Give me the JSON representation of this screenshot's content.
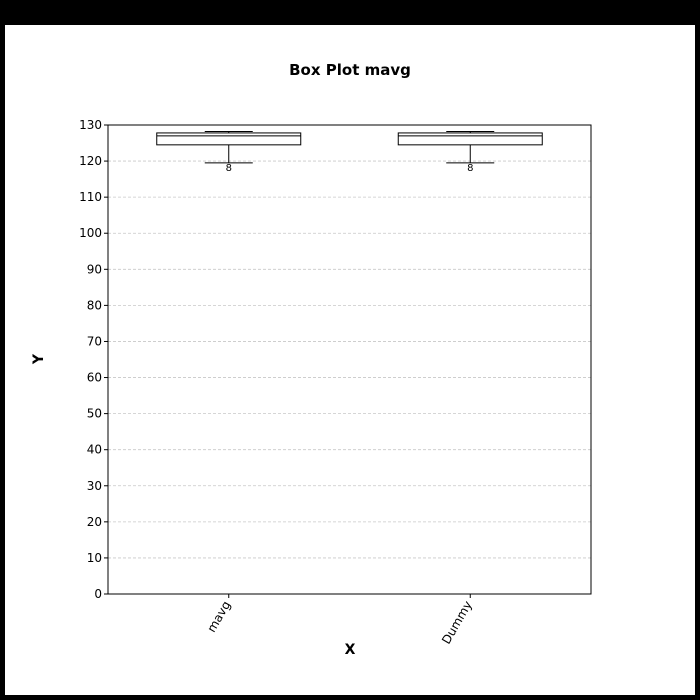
{
  "chart_data": {
    "type": "box",
    "title": "Box Plot mavg",
    "xlabel": "X",
    "ylabel": "Y",
    "ylim": [
      0,
      130
    ],
    "yticks": [
      0,
      10,
      20,
      30,
      40,
      50,
      60,
      70,
      80,
      90,
      100,
      110,
      120,
      130
    ],
    "grid": true,
    "categories": [
      "mavg",
      "Dummy"
    ],
    "boxes": [
      {
        "category": "mavg",
        "whisker_low": 119.5,
        "q1": 124.5,
        "median": 127.0,
        "q3": 127.8,
        "whisker_high": 128.2,
        "outlier_label": "8",
        "outlier_value": 118.3
      },
      {
        "category": "Dummy",
        "whisker_low": 119.5,
        "q1": 124.5,
        "median": 127.0,
        "q3": 127.8,
        "whisker_high": 128.2,
        "outlier_label": "8",
        "outlier_value": 118.3
      }
    ],
    "colors": {
      "box": "#000000",
      "grid": "#c8c8c8",
      "background": "#ffffff"
    }
  }
}
